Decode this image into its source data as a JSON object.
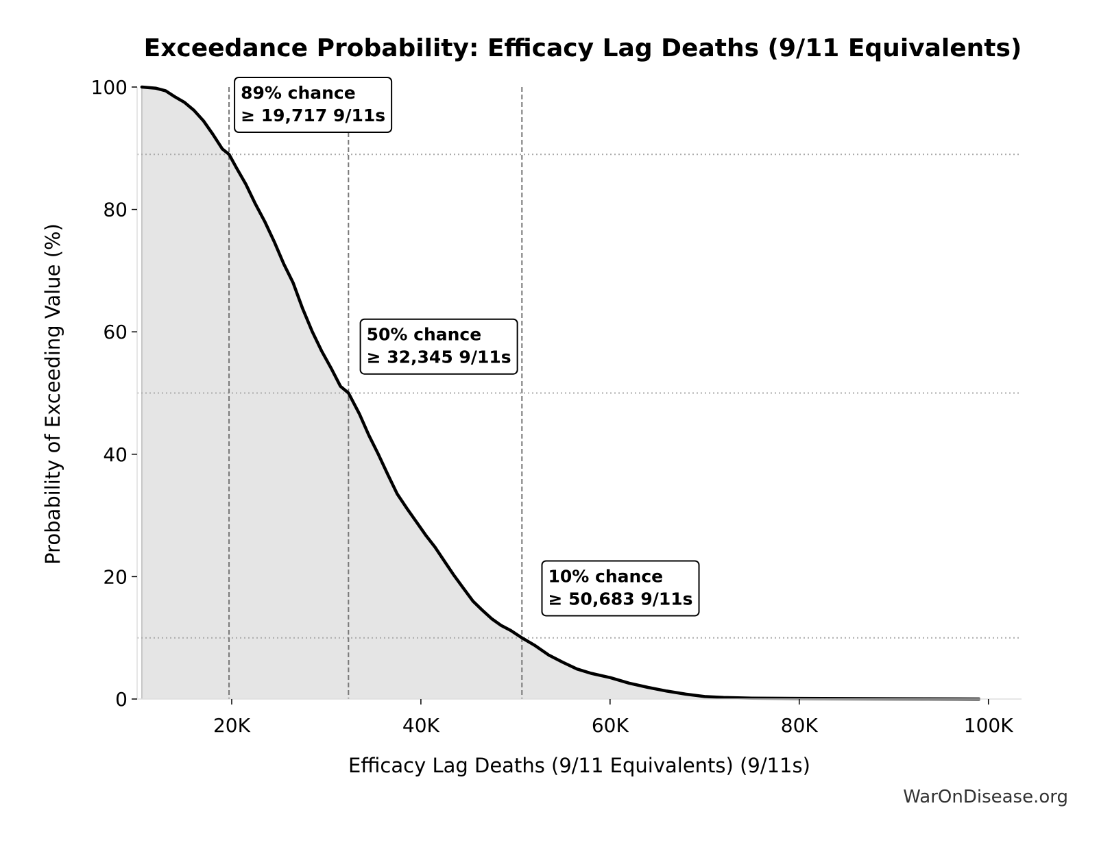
{
  "chart_data": {
    "type": "area",
    "title": "Exceedance Probability: Efficacy Lag Deaths (9/11 Equivalents)",
    "xlabel": "Efficacy Lag Deaths (9/11 Equivalents) (9/11s)",
    "ylabel": "Probability of Exceeding Value (%)",
    "xlim": [
      10000,
      103500
    ],
    "ylim": [
      0,
      100
    ],
    "x_ticks": [
      {
        "value": 20000,
        "label": "20K"
      },
      {
        "value": 40000,
        "label": "40K"
      },
      {
        "value": 60000,
        "label": "60K"
      },
      {
        "value": 80000,
        "label": "80K"
      },
      {
        "value": 100000,
        "label": "100K"
      }
    ],
    "y_ticks": [
      {
        "value": 0,
        "label": "0"
      },
      {
        "value": 20,
        "label": "20"
      },
      {
        "value": 40,
        "label": "40"
      },
      {
        "value": 60,
        "label": "60"
      },
      {
        "value": 80,
        "label": "80"
      },
      {
        "value": 100,
        "label": "100"
      }
    ],
    "grid": false,
    "fill_color": "#e5e5e5",
    "line_color": "#000000",
    "reference_line_color": "#777777",
    "series": [
      {
        "x": [
          10500,
          12000,
          13000,
          14000,
          15000,
          16000,
          17000,
          18000,
          19000,
          19717,
          20500,
          21500,
          22500,
          23500,
          24500,
          25500,
          26500,
          27500,
          28500,
          29500,
          30500,
          31500,
          32345,
          33500,
          34500,
          35500,
          36500,
          37500,
          38500,
          39500,
          40500,
          41500,
          42500,
          43500,
          44500,
          45500,
          46500,
          47500,
          48500,
          49500,
          50683,
          52000,
          53500,
          55000,
          56500,
          58000,
          60000,
          62000,
          64000,
          66000,
          68000,
          70000,
          72000,
          75000,
          80000,
          90000,
          99000
        ],
        "y": [
          100,
          99.8,
          99.4,
          98.4,
          97.5,
          96.2,
          94.5,
          92.3,
          89.9,
          89,
          86.8,
          84.1,
          80.9,
          78.0,
          74.7,
          71.1,
          68.0,
          63.8,
          60.1,
          56.9,
          54.1,
          51.1,
          50,
          46.6,
          43.1,
          40.0,
          36.7,
          33.5,
          31.2,
          29.0,
          26.8,
          24.8,
          22.5,
          20.2,
          18.1,
          16.0,
          14.5,
          13.1,
          12.0,
          11.2,
          10,
          8.8,
          7.2,
          6.0,
          4.9,
          4.2,
          3.5,
          2.6,
          1.9,
          1.3,
          0.8,
          0.4,
          0.25,
          0.15,
          0.1,
          0.05,
          0.0
        ]
      }
    ],
    "reference_lines": {
      "vertical": [
        19717,
        32345,
        50683
      ],
      "horizontal": [
        89,
        50,
        10
      ]
    },
    "annotations": [
      {
        "line1": "89% chance",
        "line2": "≥ 19,717 9/11s",
        "x": 20300,
        "y": 100
      },
      {
        "line1": "50% chance",
        "line2": "≥ 32,345 9/11s",
        "x": 33600,
        "y": 60.5
      },
      {
        "line1": "10% chance",
        "line2": "≥ 50,683 9/11s",
        "x": 52800,
        "y": 21
      }
    ]
  },
  "watermark": "WarOnDisease.org"
}
